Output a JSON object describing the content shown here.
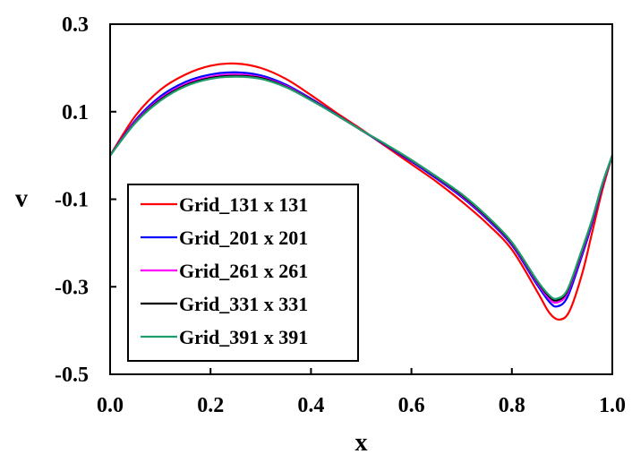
{
  "chart_data": {
    "type": "line",
    "title": "",
    "xlabel": "x",
    "ylabel": "v",
    "xlim": [
      0.0,
      1.0
    ],
    "ylim": [
      -0.5,
      0.3
    ],
    "x_ticks": [
      "0.0",
      "0.2",
      "0.4",
      "0.6",
      "0.8",
      "1.0"
    ],
    "y_ticks": [
      "0.3",
      "0.1",
      "-0.1",
      "-0.3",
      "-0.5"
    ],
    "grid": false,
    "legend_position": "bottom-left",
    "series": [
      {
        "name": "Grid_131 x 131",
        "color": "#ff0000",
        "x": [
          0.0,
          0.05,
          0.1,
          0.15,
          0.2,
          0.25,
          0.3,
          0.35,
          0.4,
          0.45,
          0.5,
          0.55,
          0.6,
          0.65,
          0.7,
          0.75,
          0.8,
          0.85,
          0.875,
          0.895,
          0.915,
          0.94,
          0.96,
          0.98,
          1.0
        ],
        "y": [
          0.0,
          0.09,
          0.15,
          0.185,
          0.205,
          0.21,
          0.2,
          0.175,
          0.138,
          0.098,
          0.06,
          0.02,
          -0.02,
          -0.06,
          -0.105,
          -0.155,
          -0.215,
          -0.31,
          -0.36,
          -0.375,
          -0.355,
          -0.27,
          -0.175,
          -0.08,
          0.0
        ]
      },
      {
        "name": "Grid_201 x 201",
        "color": "#0000ff",
        "x": [
          0.0,
          0.05,
          0.1,
          0.15,
          0.2,
          0.25,
          0.3,
          0.35,
          0.4,
          0.45,
          0.5,
          0.55,
          0.6,
          0.65,
          0.7,
          0.75,
          0.8,
          0.85,
          0.875,
          0.89,
          0.91,
          0.935,
          0.96,
          0.98,
          1.0
        ],
        "y": [
          0.0,
          0.08,
          0.135,
          0.168,
          0.185,
          0.19,
          0.183,
          0.162,
          0.13,
          0.094,
          0.058,
          0.022,
          -0.014,
          -0.053,
          -0.095,
          -0.145,
          -0.205,
          -0.295,
          -0.335,
          -0.345,
          -0.325,
          -0.245,
          -0.155,
          -0.07,
          0.0
        ]
      },
      {
        "name": "Grid_261 x 261",
        "color": "#ff00ff",
        "x": [
          0.0,
          0.05,
          0.1,
          0.15,
          0.2,
          0.25,
          0.3,
          0.35,
          0.4,
          0.45,
          0.5,
          0.55,
          0.6,
          0.65,
          0.7,
          0.75,
          0.8,
          0.85,
          0.875,
          0.89,
          0.91,
          0.935,
          0.96,
          0.98,
          1.0
        ],
        "y": [
          0.0,
          0.077,
          0.13,
          0.163,
          0.18,
          0.185,
          0.179,
          0.159,
          0.128,
          0.093,
          0.058,
          0.023,
          -0.012,
          -0.05,
          -0.092,
          -0.142,
          -0.202,
          -0.29,
          -0.328,
          -0.336,
          -0.316,
          -0.238,
          -0.15,
          -0.068,
          0.0
        ]
      },
      {
        "name": "Grid_331 x 331",
        "color": "#000000",
        "x": [
          0.0,
          0.05,
          0.1,
          0.15,
          0.2,
          0.25,
          0.3,
          0.35,
          0.4,
          0.45,
          0.5,
          0.55,
          0.6,
          0.65,
          0.7,
          0.75,
          0.8,
          0.85,
          0.875,
          0.89,
          0.91,
          0.935,
          0.96,
          0.98,
          1.0
        ],
        "y": [
          0.0,
          0.075,
          0.127,
          0.16,
          0.177,
          0.182,
          0.177,
          0.157,
          0.127,
          0.093,
          0.058,
          0.024,
          -0.011,
          -0.049,
          -0.09,
          -0.14,
          -0.2,
          -0.287,
          -0.323,
          -0.331,
          -0.311,
          -0.233,
          -0.147,
          -0.066,
          0.0
        ]
      },
      {
        "name": "Grid_391 x 391",
        "color": "#1f9e6e",
        "x": [
          0.0,
          0.05,
          0.1,
          0.15,
          0.2,
          0.25,
          0.3,
          0.35,
          0.4,
          0.45,
          0.5,
          0.55,
          0.6,
          0.65,
          0.7,
          0.75,
          0.8,
          0.85,
          0.875,
          0.89,
          0.91,
          0.935,
          0.96,
          0.98,
          1.0
        ],
        "y": [
          0.0,
          0.074,
          0.125,
          0.158,
          0.175,
          0.18,
          0.175,
          0.156,
          0.126,
          0.093,
          0.058,
          0.025,
          -0.01,
          -0.048,
          -0.088,
          -0.138,
          -0.198,
          -0.285,
          -0.32,
          -0.327,
          -0.308,
          -0.23,
          -0.145,
          -0.065,
          0.0
        ]
      }
    ]
  }
}
